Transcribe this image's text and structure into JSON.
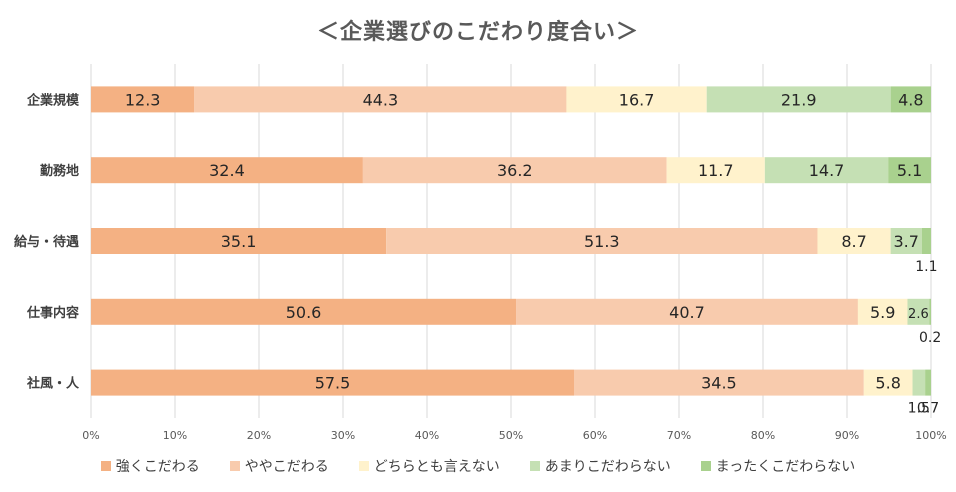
{
  "chart_data": {
    "type": "bar",
    "orientation": "horizontal",
    "stacked": true,
    "title": "＜企業選びのこだわり度合い＞",
    "categories": [
      "企業規模",
      "勤務地",
      "給与・待遇",
      "仕事内容",
      "社風・人"
    ],
    "series": [
      {
        "name": "強くこだわる",
        "color": "#F4B183",
        "values": [
          12.3,
          32.4,
          35.1,
          50.6,
          57.5
        ]
      },
      {
        "name": "ややこだわる",
        "color": "#F8CBAD",
        "values": [
          44.3,
          36.2,
          51.3,
          40.7,
          34.5
        ]
      },
      {
        "name": "どちらとも言えない",
        "color": "#FFF2CC",
        "values": [
          16.7,
          11.7,
          8.7,
          5.9,
          5.8
        ]
      },
      {
        "name": "あまりこだわらない",
        "color": "#C5E0B4",
        "values": [
          21.9,
          14.7,
          3.7,
          2.6,
          1.5
        ]
      },
      {
        "name": "まったくこだわらない",
        "color": "#A9D18E",
        "values": [
          4.8,
          5.1,
          1.1,
          0.2,
          0.7
        ]
      }
    ],
    "xlim": [
      0,
      100
    ],
    "x_ticks": [
      "0%",
      "10%",
      "20%",
      "30%",
      "40%",
      "50%",
      "60%",
      "70%",
      "80%",
      "90%",
      "100%"
    ],
    "grid": true,
    "legend_position": "bottom"
  }
}
